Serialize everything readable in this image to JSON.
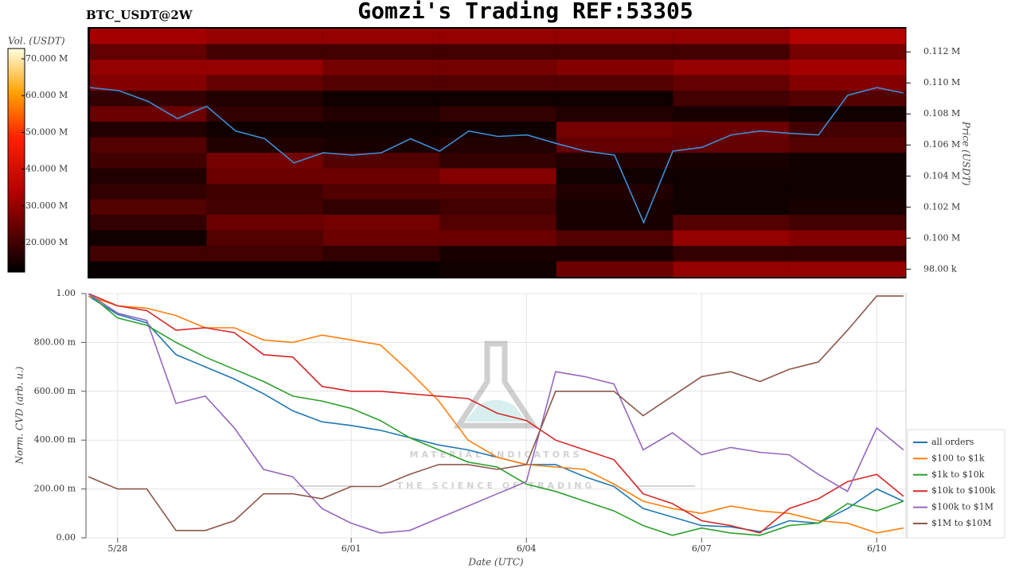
{
  "chart_data": [
    {
      "type": "heatmap",
      "title": "Gomzi's Trading REF:53305",
      "subtitle": "BTC_USDT@2W",
      "x_bins": [
        "5/27 12:00",
        "5/29 12:00",
        "5/31 12:00",
        "6/02 12:00",
        "6/04 12:00",
        "6/06 12:00",
        "6/08 12:00",
        "6/10 12:00"
      ],
      "y_bins": [
        97500,
        98500,
        99500,
        100500,
        101500,
        102500,
        103500,
        104500,
        105500,
        106500,
        107500,
        108500,
        109500,
        110500,
        111500,
        112500,
        113500
      ],
      "values": [
        [
          13000000,
          13000000,
          13000000,
          14000000,
          25000000,
          30000000,
          30000000
        ],
        [
          20000000,
          20000000,
          18000000,
          15000000,
          15000000,
          18000000,
          18000000
        ],
        [
          14000000,
          22000000,
          25000000,
          25000000,
          22000000,
          30000000,
          28000000
        ],
        [
          18000000,
          25000000,
          26000000,
          22000000,
          15000000,
          22000000,
          20000000
        ],
        [
          22000000,
          20000000,
          18000000,
          20000000,
          15000000,
          14000000,
          15000000
        ],
        [
          18000000,
          20000000,
          22000000,
          22000000,
          16000000,
          14000000,
          14000000
        ],
        [
          16000000,
          25000000,
          25000000,
          28000000,
          14000000,
          14000000,
          14000000
        ],
        [
          20000000,
          26000000,
          22000000,
          18000000,
          16000000,
          15000000,
          14000000
        ],
        [
          22000000,
          16000000,
          15000000,
          16000000,
          24000000,
          24000000,
          22000000
        ],
        [
          16000000,
          14000000,
          14000000,
          14000000,
          26000000,
          25000000,
          20000000
        ],
        [
          25000000,
          18000000,
          16000000,
          18000000,
          16000000,
          15000000,
          14000000
        ],
        [
          18000000,
          16000000,
          14000000,
          14000000,
          14000000,
          20000000,
          22000000
        ],
        [
          28000000,
          24000000,
          22000000,
          22000000,
          22000000,
          24000000,
          28000000
        ],
        [
          30000000,
          30000000,
          26000000,
          26000000,
          28000000,
          30000000,
          32000000
        ],
        [
          24000000,
          20000000,
          20000000,
          20000000,
          20000000,
          20000000,
          26000000
        ],
        [
          32000000,
          30000000,
          30000000,
          30000000,
          30000000,
          30000000,
          34000000
        ]
      ],
      "colorbar": {
        "label": "Vol. (USDT)",
        "lim": [
          12000000,
          72800000
        ],
        "ticks": [
          {
            "value": 70000000,
            "label": "70.000 M"
          },
          {
            "value": 60000000,
            "label": "60.000 M"
          },
          {
            "value": 50000000,
            "label": "50.000 M"
          },
          {
            "value": 40000000,
            "label": "40.000 M"
          },
          {
            "value": 30000000,
            "label": "30.000 M"
          },
          {
            "value": 20000000,
            "label": "20.000 M"
          }
        ]
      },
      "ylabel": "Price (USDT)",
      "xlim": [
        "5/27 11:00",
        "6/10 12:00"
      ],
      "ylim": [
        97400,
        113600
      ],
      "yticks": [
        {
          "value": 112000,
          "label": "0.112 M"
        },
        {
          "value": 110000,
          "label": "0.110 M"
        },
        {
          "value": 108000,
          "label": "0.108 M"
        },
        {
          "value": 106000,
          "label": "0.106 M"
        },
        {
          "value": 104000,
          "label": "0.104 M"
        },
        {
          "value": 102000,
          "label": "0.102 M"
        },
        {
          "value": 100000,
          "label": "0.100 M"
        },
        {
          "value": 98000,
          "label": "98.00 k"
        }
      ],
      "line": {
        "color": "#3d8fd6",
        "x": [
          "5/27 12:00",
          "5/28 00:00",
          "5/28 12:00",
          "5/29 00:00",
          "5/29 12:00",
          "5/30 00:00",
          "5/30 12:00",
          "5/31 00:00",
          "5/31 12:00",
          "6/01 00:00",
          "6/01 12:00",
          "6/02 00:00",
          "6/02 12:00",
          "6/03 00:00",
          "6/03 12:00",
          "6/04 00:00",
          "6/04 12:00",
          "6/05 00:00",
          "6/05 12:00",
          "6/06 00:00",
          "6/06 12:00",
          "6/07 00:00",
          "6/07 12:00",
          "6/08 00:00",
          "6/08 12:00",
          "6/09 00:00",
          "6/09 12:00",
          "6/10 00:00",
          "6/10 11:00"
        ],
        "values": [
          109700,
          109500,
          108800,
          107700,
          108500,
          106900,
          106400,
          104850,
          105500,
          105350,
          105500,
          106400,
          105600,
          106900,
          106550,
          106650,
          106100,
          105600,
          105350,
          101000,
          105600,
          105850,
          106650,
          106900,
          106750,
          106650,
          109200,
          109700,
          109350
        ]
      }
    },
    {
      "type": "line",
      "xlabel": "Date (UTC)",
      "ylabel": "Norm. CVD (arb. u.)",
      "x": [
        "5/27 12:00",
        "5/28 00:00",
        "5/28 12:00",
        "5/29 00:00",
        "5/29 12:00",
        "5/30 00:00",
        "5/30 12:00",
        "5/31 00:00",
        "5/31 12:00",
        "6/01 00:00",
        "6/01 12:00",
        "6/02 00:00",
        "6/02 12:00",
        "6/03 00:00",
        "6/03 12:00",
        "6/04 00:00",
        "6/04 12:00",
        "6/05 00:00",
        "6/05 12:00",
        "6/06 00:00",
        "6/06 12:00",
        "6/07 00:00",
        "6/07 12:00",
        "6/08 00:00",
        "6/08 12:00",
        "6/09 00:00",
        "6/09 12:00",
        "6/10 00:00",
        "6/10 11:00"
      ],
      "series": [
        {
          "name": "all orders",
          "color": "#1f77b4",
          "values": [
            0.99,
            0.915,
            0.88,
            0.75,
            0.7,
            0.65,
            0.59,
            0.52,
            0.475,
            0.46,
            0.44,
            0.41,
            0.38,
            0.36,
            0.33,
            0.3,
            0.3,
            0.25,
            0.21,
            0.12,
            0.085,
            0.05,
            0.045,
            0.025,
            0.07,
            0.06,
            0.12,
            0.2,
            0.15
          ]
        },
        {
          "name": "$100 to $1k",
          "color": "#ff7f0e",
          "values": [
            0.99,
            0.95,
            0.94,
            0.91,
            0.86,
            0.86,
            0.81,
            0.8,
            0.83,
            0.81,
            0.79,
            0.68,
            0.56,
            0.4,
            0.33,
            0.3,
            0.29,
            0.28,
            0.22,
            0.15,
            0.12,
            0.1,
            0.13,
            0.11,
            0.1,
            0.07,
            0.06,
            0.02,
            0.04
          ]
        },
        {
          "name": "$1k to $10k",
          "color": "#2ca02c",
          "values": [
            1.0,
            0.9,
            0.87,
            0.8,
            0.74,
            0.69,
            0.64,
            0.58,
            0.56,
            0.53,
            0.48,
            0.41,
            0.36,
            0.31,
            0.29,
            0.22,
            0.19,
            0.15,
            0.11,
            0.05,
            0.01,
            0.04,
            0.02,
            0.01,
            0.05,
            0.06,
            0.14,
            0.11,
            0.15
          ]
        },
        {
          "name": "$10k to $100k",
          "color": "#d62728",
          "values": [
            1.0,
            0.95,
            0.93,
            0.85,
            0.86,
            0.84,
            0.75,
            0.74,
            0.62,
            0.6,
            0.6,
            0.59,
            0.58,
            0.57,
            0.51,
            0.48,
            0.4,
            0.36,
            0.32,
            0.18,
            0.14,
            0.07,
            0.05,
            0.02,
            0.12,
            0.16,
            0.23,
            0.26,
            0.17
          ]
        },
        {
          "name": "$100k to $1M",
          "color": "#9467bd",
          "values": [
            1.0,
            0.92,
            0.89,
            0.55,
            0.58,
            0.45,
            0.28,
            0.25,
            0.12,
            0.06,
            0.02,
            0.03,
            0.08,
            0.13,
            0.18,
            0.23,
            0.68,
            0.66,
            0.63,
            0.36,
            0.43,
            0.34,
            0.37,
            0.35,
            0.34,
            0.26,
            0.19,
            0.45,
            0.36
          ]
        },
        {
          "name": "$1M to $10M",
          "color": "#8c564b",
          "values": [
            0.25,
            0.2,
            0.2,
            0.03,
            0.03,
            0.07,
            0.18,
            0.18,
            0.16,
            0.21,
            0.21,
            0.26,
            0.3,
            0.3,
            0.28,
            0.3,
            0.6,
            0.6,
            0.6,
            0.5,
            0.58,
            0.66,
            0.68,
            0.64,
            0.69,
            0.72,
            0.85,
            0.99,
            0.99
          ]
        }
      ],
      "xlim": [
        "5/27 11:00",
        "6/10 12:00"
      ],
      "xticks": [
        {
          "value": "5/28 00:00",
          "label": "5/28"
        },
        {
          "value": "6/01 00:00",
          "label": "6/01"
        },
        {
          "value": "6/04 00:00",
          "label": "6/04"
        },
        {
          "value": "6/07 00:00",
          "label": "6/07"
        },
        {
          "value": "6/10 00:00",
          "label": "6/10"
        }
      ],
      "ylim": [
        0,
        1
      ],
      "yticks": [
        {
          "value": 0,
          "label": "0.00"
        },
        {
          "value": 0.2,
          "label": "200.00 m"
        },
        {
          "value": 0.4,
          "label": "400.00 m"
        },
        {
          "value": 0.6,
          "label": "600.00 m"
        },
        {
          "value": 0.8,
          "label": "800.00 m"
        },
        {
          "value": 1,
          "label": "1.00"
        }
      ],
      "grid": true,
      "legend": "lower right",
      "watermark": [
        "MATERIAL INDICATORS",
        "THE SCIENCE OF TRADING"
      ]
    }
  ]
}
